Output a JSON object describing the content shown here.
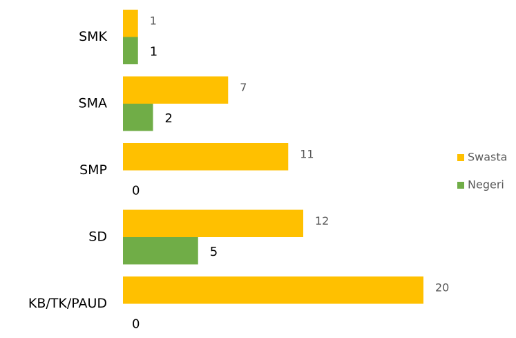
{
  "chart_data": {
    "type": "barh",
    "categories": [
      "SMK",
      "SMA",
      "SMP",
      "SD",
      "KB/TK/PAUD"
    ],
    "series": [
      {
        "name": "Swasta",
        "color": "#FFC000",
        "values": [
          1,
          7,
          11,
          12,
          20
        ]
      },
      {
        "name": "Negeri",
        "color": "#70AD47",
        "values": [
          1,
          2,
          0,
          5,
          0
        ]
      }
    ],
    "xlim": [
      0,
      20
    ],
    "legend": "right"
  }
}
